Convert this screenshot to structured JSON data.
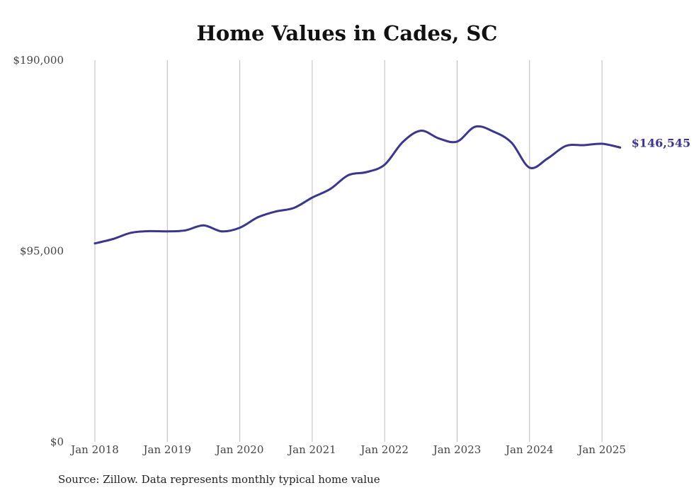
{
  "chart_data": {
    "type": "line",
    "title": "Home Values in Cades, SC",
    "xlabel": "",
    "ylabel": "",
    "ylim": [
      0,
      190000
    ],
    "y_ticks": [
      {
        "value": 0,
        "label": "$0"
      },
      {
        "value": 95000,
        "label": "$95,000"
      },
      {
        "value": 190000,
        "label": "$190,000"
      }
    ],
    "x_ticks": [
      {
        "value": 2018,
        "label": "Jan 2018"
      },
      {
        "value": 2019,
        "label": "Jan 2019"
      },
      {
        "value": 2020,
        "label": "Jan 2020"
      },
      {
        "value": 2021,
        "label": "Jan 2021"
      },
      {
        "value": 2022,
        "label": "Jan 2022"
      },
      {
        "value": 2023,
        "label": "Jan 2023"
      },
      {
        "value": 2024,
        "label": "Jan 2024"
      },
      {
        "value": 2025,
        "label": "Jan 2025"
      }
    ],
    "grid": "vertical",
    "line_color": "#3b3594",
    "series": [
      {
        "x": [
          "Jan 2018",
          "Apr 2018",
          "Jul 2018",
          "Oct 2018",
          "Jan 2019",
          "Apr 2019",
          "Jul 2019",
          "Oct 2019",
          "Jan 2020",
          "Apr 2020",
          "Jul 2020",
          "Oct 2020",
          "Jan 2021",
          "Apr 2021",
          "Jul 2021",
          "Oct 2021",
          "Jan 2022",
          "Apr 2022",
          "Jul 2022",
          "Oct 2022",
          "Jan 2023",
          "Apr 2023",
          "Jul 2023",
          "Oct 2023",
          "Jan 2024",
          "Apr 2024",
          "Jul 2024",
          "Oct 2024",
          "Jan 2025",
          "Apr 2025"
        ],
        "t": [
          2018.0,
          2018.25,
          2018.5,
          2018.75,
          2019.0,
          2019.25,
          2019.5,
          2019.75,
          2020.0,
          2020.25,
          2020.5,
          2020.75,
          2021.0,
          2021.25,
          2021.5,
          2021.75,
          2022.0,
          2022.25,
          2022.5,
          2022.75,
          2023.0,
          2023.25,
          2023.5,
          2023.75,
          2024.0,
          2024.25,
          2024.5,
          2024.75,
          2025.0,
          2025.25
        ],
        "values": [
          98800,
          101000,
          104100,
          104900,
          104800,
          105300,
          107800,
          104800,
          106600,
          111800,
          114700,
          116500,
          121600,
          125900,
          132800,
          134300,
          138000,
          149300,
          154900,
          151000,
          149500,
          156900,
          154500,
          149000,
          136500,
          141100,
          147300,
          147700,
          148400,
          146545
        ]
      }
    ],
    "end_label": "$146,545"
  },
  "source_note": "Source: Zillow. Data represents monthly typical home value"
}
